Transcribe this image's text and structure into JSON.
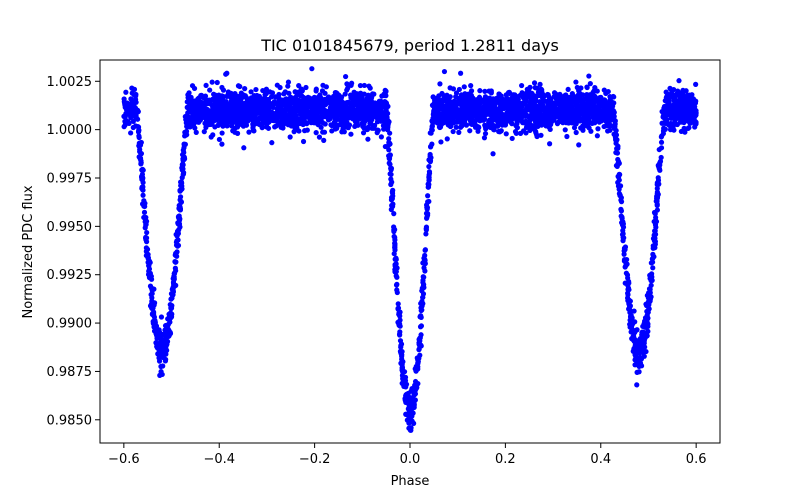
{
  "chart_data": {
    "type": "scatter",
    "title": "TIC 0101845679, period 1.2811 days",
    "xlabel": "Phase",
    "ylabel": "Normalized PDC flux",
    "xlim": [
      -0.65,
      0.65
    ],
    "ylim": [
      0.9838,
      1.0036
    ],
    "x_ticks": [
      -0.6,
      -0.4,
      -0.2,
      0.0,
      0.2,
      0.4,
      0.6
    ],
    "x_tick_labels": [
      "−0.6",
      "−0.4",
      "−0.2",
      "0.0",
      "0.2",
      "0.4",
      "0.6"
    ],
    "y_ticks": [
      0.985,
      0.9875,
      0.99,
      0.9925,
      0.995,
      0.9975,
      1.0,
      1.0025
    ],
    "y_tick_labels": [
      "0.9850",
      "0.9875",
      "0.9900",
      "0.9925",
      "0.9950",
      "0.9975",
      "1.0000",
      "1.0025"
    ],
    "grid": false,
    "marker_color": "#0000ff",
    "series": [
      {
        "name": "flux",
        "x_range": [
          -0.6,
          0.6
        ],
        "baseline": 1.001,
        "scatter_sd": 0.0005,
        "eclipses": [
          {
            "center": -0.52,
            "depth": 0.0125,
            "half_width": 0.055
          },
          {
            "center": 0.0,
            "depth": 0.0155,
            "half_width": 0.05
          },
          {
            "center": 0.48,
            "depth": 0.0125,
            "half_width": 0.055
          }
        ],
        "n_points": 4200
      }
    ]
  }
}
